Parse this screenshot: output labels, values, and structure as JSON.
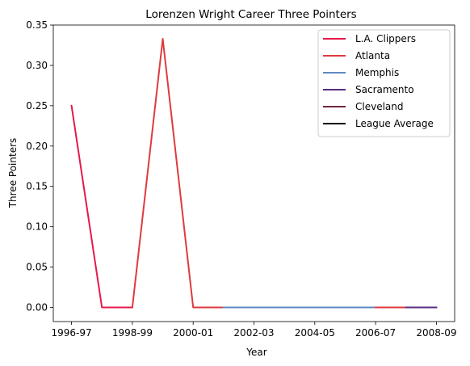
{
  "chart_data": {
    "type": "line",
    "title": "Lorenzen Wright Career Three Pointers",
    "xlabel": "Year",
    "ylabel": "Three Pointers",
    "ylim": [
      -0.0175,
      0.35
    ],
    "yticks": [
      0.0,
      0.05,
      0.1,
      0.15,
      0.2,
      0.25,
      0.3,
      0.35
    ],
    "ytick_labels": [
      "0.00",
      "0.05",
      "0.10",
      "0.15",
      "0.20",
      "0.25",
      "0.30",
      "0.35"
    ],
    "xticks": [
      "1996-97",
      "1998-99",
      "2000-01",
      "2002-03",
      "2004-05",
      "2006-07",
      "2008-09"
    ],
    "categories": [
      "1996-97",
      "1997-98",
      "1998-99",
      "1999-00",
      "2000-01",
      "2001-02",
      "2002-03",
      "2003-04",
      "2004-05",
      "2005-06",
      "2006-07",
      "2007-08",
      "2008-09"
    ],
    "grid": false,
    "legend_position": "top-right",
    "series": [
      {
        "name": "L.A. Clippers",
        "color": "#e6194b",
        "x": [
          "1996-97",
          "1997-98",
          "1998-99"
        ],
        "values": [
          0.25,
          0.0,
          0.0
        ]
      },
      {
        "name": "Atlanta",
        "color": "#e03a3e",
        "x": [
          "1998-99",
          "1999-00",
          "2000-01",
          "2001-02"
        ],
        "values": [
          0.0,
          0.333,
          0.0,
          0.0
        ]
      },
      {
        "name": "Memphis",
        "color": "#5d8ac0",
        "x": [
          "2001-02",
          "2002-03",
          "2003-04",
          "2004-05",
          "2005-06",
          "2006-07"
        ],
        "values": [
          0.0,
          0.0,
          0.0,
          0.0,
          0.0,
          0.0
        ]
      },
      {
        "name": "Atlanta",
        "color": "#e03a3e",
        "x": [
          "2006-07",
          "2007-08"
        ],
        "values": [
          0.0,
          0.0
        ]
      },
      {
        "name": "Sacramento",
        "color": "#5a2d81",
        "x": [
          "2007-08",
          "2008-09"
        ],
        "values": [
          0.0,
          0.0
        ]
      }
    ],
    "legend": [
      {
        "label": "L.A. Clippers",
        "color": "#e6194b"
      },
      {
        "label": "Atlanta",
        "color": "#e03a3e"
      },
      {
        "label": "Memphis",
        "color": "#5d8ac0"
      },
      {
        "label": "Sacramento",
        "color": "#5a2d81"
      },
      {
        "label": "Cleveland",
        "color": "#6f263d"
      },
      {
        "label": "League Average",
        "color": "#000000"
      }
    ]
  }
}
